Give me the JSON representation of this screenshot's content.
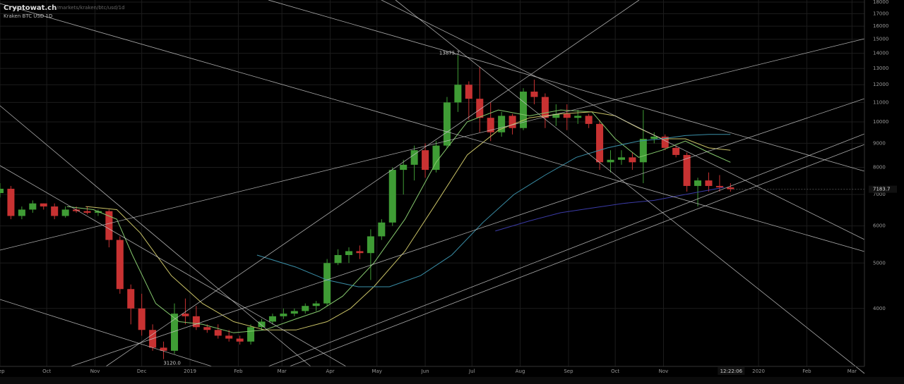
{
  "header": {
    "site": "Cryptowat.ch",
    "path": "/markets/kraken/btc/usd/1d",
    "market": "Kraken BTC USD 1D"
  },
  "chart_data": {
    "type": "candlestick",
    "log_scale": true,
    "grid": true,
    "up_color": "#3f9c35",
    "down_color": "#c83232",
    "x": [
      0,
      7,
      14,
      21,
      28,
      35,
      42,
      49,
      56,
      63,
      70,
      77,
      84,
      91,
      98,
      105,
      112,
      119,
      126,
      133,
      140,
      147,
      154,
      161,
      168,
      175,
      182,
      189,
      196,
      203,
      210,
      217,
      224,
      231,
      238,
      245,
      252,
      259,
      266,
      273,
      280,
      287,
      294,
      301,
      308,
      315,
      322,
      329,
      336,
      343,
      350,
      357,
      364,
      371,
      378,
      385,
      392,
      399,
      406,
      413,
      420,
      427,
      434,
      441,
      448,
      455,
      462,
      469
    ],
    "series": [
      {
        "name": "open",
        "values": [
          7050,
          7200,
          6300,
          6500,
          6700,
          6600,
          6300,
          6500,
          6450,
          6400,
          6450,
          5600,
          4400,
          4000,
          3600,
          3300,
          3250,
          3900,
          3850,
          3650,
          3600,
          3500,
          3450,
          3400,
          3650,
          3750,
          3850,
          3900,
          3950,
          4050,
          4100,
          5000,
          5200,
          5300,
          5250,
          5700,
          6100,
          7900,
          8100,
          8700,
          7900,
          8900,
          11000,
          12000,
          11200,
          10200,
          9500,
          10300,
          9700,
          11600,
          11300,
          10200,
          10400,
          10200,
          10300,
          9900,
          8200,
          8300,
          8400,
          8200,
          9200,
          9300,
          8800,
          8500,
          7300,
          7500,
          7300,
          7250
        ]
      },
      {
        "name": "high",
        "values": [
          7400,
          7300,
          6600,
          6800,
          6700,
          6700,
          6600,
          6600,
          6600,
          6500,
          6500,
          5700,
          4500,
          4300,
          3700,
          3400,
          4100,
          4200,
          4050,
          3700,
          3700,
          3600,
          3500,
          3700,
          3800,
          3900,
          4000,
          4000,
          4100,
          4150,
          5100,
          5350,
          5400,
          5450,
          5900,
          6200,
          8000,
          8300,
          8900,
          9000,
          9100,
          11300,
          13875.7,
          12200,
          13100,
          11000,
          10500,
          10400,
          11800,
          12300,
          11500,
          10900,
          10900,
          10600,
          10400,
          10100,
          8700,
          8700,
          8600,
          10600,
          9500,
          9400,
          8900,
          8600,
          7600,
          7800,
          7700,
          7400
        ]
      },
      {
        "name": "low",
        "values": [
          6900,
          6200,
          6200,
          6400,
          6500,
          6200,
          6250,
          6400,
          6350,
          6300,
          5400,
          4300,
          3700,
          3500,
          3250,
          3120,
          3200,
          3700,
          3600,
          3550,
          3450,
          3400,
          3350,
          3350,
          3600,
          3700,
          3800,
          3850,
          3900,
          3950,
          4050,
          4950,
          5000,
          5100,
          4600,
          5600,
          6000,
          7000,
          7500,
          7600,
          7800,
          8800,
          10500,
          10100,
          9500,
          9100,
          9300,
          9400,
          9600,
          10900,
          9700,
          9800,
          9600,
          9900,
          9700,
          7900,
          7800,
          8100,
          7900,
          7400,
          9000,
          8700,
          8400,
          7100,
          6600,
          7100,
          7100,
          7100
        ]
      },
      {
        "name": "close",
        "values": [
          7200,
          6300,
          6500,
          6700,
          6600,
          6300,
          6500,
          6450,
          6400,
          6450,
          5600,
          4400,
          4000,
          3600,
          3300,
          3250,
          3900,
          3850,
          3650,
          3600,
          3500,
          3450,
          3400,
          3650,
          3750,
          3850,
          3900,
          3950,
          4050,
          4100,
          5000,
          5200,
          5300,
          5250,
          5700,
          6100,
          7900,
          8100,
          8700,
          7900,
          8900,
          11000,
          12000,
          11200,
          10200,
          9500,
          10300,
          9700,
          11600,
          11300,
          10200,
          10400,
          10200,
          10300,
          9900,
          8200,
          8300,
          8400,
          8200,
          9200,
          9300,
          8800,
          8500,
          7300,
          7500,
          7300,
          7250,
          7183.7
        ]
      }
    ],
    "overlays": [
      {
        "color": "#86c96e",
        "x": [
          43,
          60,
          75,
          85,
          100,
          115,
          130,
          150,
          170,
          190,
          205,
          220,
          240,
          260,
          280,
          300,
          320,
          340,
          360,
          380,
          395,
          410,
          425,
          440,
          455,
          469
        ],
        "values": [
          6600,
          6500,
          6200,
          5200,
          4100,
          3750,
          3700,
          3550,
          3600,
          3800,
          3950,
          4250,
          5000,
          6200,
          8200,
          10000,
          10600,
          10300,
          10600,
          10500,
          9200,
          8400,
          8700,
          9100,
          8600,
          8200
        ]
      },
      {
        "color": "#c9c266",
        "x": [
          55,
          75,
          90,
          110,
          130,
          150,
          170,
          190,
          210,
          225,
          240,
          260,
          280,
          300,
          320,
          340,
          360,
          380,
          395,
          410,
          425,
          440,
          455,
          469
        ],
        "values": [
          6600,
          6500,
          5800,
          4700,
          4100,
          3750,
          3600,
          3600,
          3750,
          4000,
          4450,
          5300,
          6700,
          8500,
          9600,
          10200,
          10400,
          10500,
          10300,
          9700,
          9200,
          9200,
          8800,
          8700
        ]
      },
      {
        "color": "#3a8fa8",
        "x": [
          165,
          190,
          210,
          230,
          250,
          270,
          290,
          310,
          330,
          350,
          370,
          390,
          410,
          425,
          440,
          455,
          469
        ],
        "values": [
          5200,
          4900,
          4600,
          4450,
          4450,
          4700,
          5200,
          6100,
          7000,
          7700,
          8400,
          8800,
          9100,
          9200,
          9350,
          9400,
          9400
        ]
      },
      {
        "color": "#3b3ba6",
        "x": [
          318,
          340,
          360,
          380,
          400,
          420,
          440,
          455,
          465
        ],
        "values": [
          5850,
          6150,
          6400,
          6550,
          6700,
          6800,
          7000,
          7150,
          7250
        ]
      }
    ],
    "annotations": {
      "high": "13875.7",
      "low": "3120.0",
      "last": "7183.7",
      "time": "12:22:06"
    },
    "xlim": [
      0,
      555
    ],
    "xticks": [
      {
        "value": 0,
        "label": "Sep"
      },
      {
        "value": 30,
        "label": "Oct"
      },
      {
        "value": 61,
        "label": "Nov"
      },
      {
        "value": 91,
        "label": "Dec"
      },
      {
        "value": 122,
        "label": "2019"
      },
      {
        "value": 153,
        "label": "Feb"
      },
      {
        "value": 181,
        "label": "Mar"
      },
      {
        "value": 212,
        "label": "Apr"
      },
      {
        "value": 242,
        "label": "May"
      },
      {
        "value": 273,
        "label": "Jun"
      },
      {
        "value": 303,
        "label": "Jul"
      },
      {
        "value": 334,
        "label": "Aug"
      },
      {
        "value": 365,
        "label": "Sep"
      },
      {
        "value": 395,
        "label": "Oct"
      },
      {
        "value": 426,
        "label": "Nov"
      },
      {
        "value": 487,
        "label": "2020"
      },
      {
        "value": 518,
        "label": "Feb"
      },
      {
        "value": 547,
        "label": "Mar"
      }
    ],
    "ylim": [
      3010,
      18190
    ],
    "yticks": [
      4000,
      5000,
      6000,
      7000,
      8000,
      9000,
      10000,
      11000,
      12000,
      13000,
      14000,
      15000,
      16000,
      17000,
      18000
    ]
  }
}
